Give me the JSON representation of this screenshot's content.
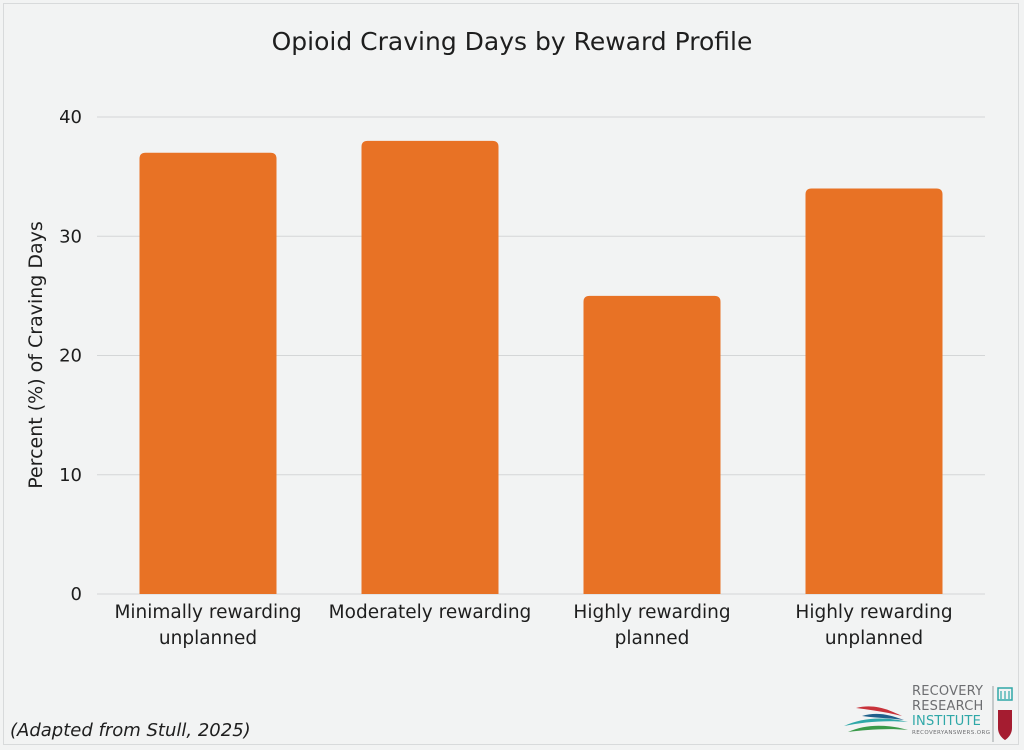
{
  "chart_data": {
    "type": "bar",
    "title": "Opioid Craving Days by Reward Profile",
    "ylabel": "Percent (%) of Craving Days",
    "xlabel": "",
    "categories": [
      [
        "Minimally rewarding",
        "unplanned"
      ],
      [
        "Moderately rewarding"
      ],
      [
        "Highly rewarding",
        "planned"
      ],
      [
        "Highly rewarding",
        "unplanned"
      ]
    ],
    "values": [
      37,
      38,
      25,
      34
    ],
    "ylim": [
      0,
      40
    ],
    "yticks": [
      0,
      10,
      20,
      30,
      40
    ],
    "grid": true,
    "bar_color": "#e87225"
  },
  "footnote": "(Adapted from Stull, 2025)",
  "logo": {
    "line1": "RECOVERY",
    "line2": "RESEARCH",
    "line3": "INSTITUTE",
    "url": "RECOVERYANSWERS.ORG"
  }
}
